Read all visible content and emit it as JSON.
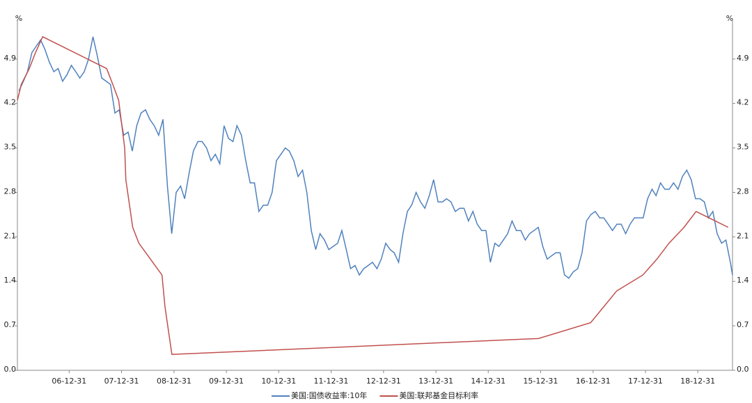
{
  "chart_data": {
    "type": "line",
    "y_label": "%",
    "y2_label": "%",
    "ylim": [
      0,
      5.5
    ],
    "yticks": [
      {
        "value": 0,
        "label": "0.0"
      },
      0.7,
      1.4,
      2.1,
      2.8,
      3.5,
      4.2,
      4.9
    ],
    "y2lim": [
      0,
      5.5
    ],
    "y2ticks": [
      {
        "value": 0,
        "label": "0.0"
      },
      0.7,
      1.4,
      2.1,
      2.8,
      3.5,
      4.2,
      4.9
    ],
    "xlim": [
      "06-01-04",
      "19-08-30"
    ],
    "xticks": [
      "06-12-31",
      "07-12-31",
      "08-12-31",
      "09-12-31",
      "10-12-31",
      "11-12-31",
      "12-12-31",
      "13-12-31",
      "14-12-31",
      "15-12-31",
      "16-12-31",
      "17-12-31",
      "18-12-31"
    ],
    "legend": "bottom",
    "series": [
      {
        "name": "美国:国债收益率:10年",
        "color": "#4f81bd",
        "x": [
          "06-01-15",
          "06-02-15",
          "06-03-15",
          "06-04-15",
          "06-05-15",
          "06-06-15",
          "06-07-15",
          "06-08-15",
          "06-09-15",
          "06-10-15",
          "06-11-15",
          "06-12-15",
          "07-01-15",
          "07-02-15",
          "07-03-15",
          "07-04-15",
          "07-05-15",
          "07-06-15",
          "07-07-15",
          "07-08-15",
          "07-09-15",
          "07-10-15",
          "07-11-15",
          "07-12-15",
          "08-01-15",
          "08-02-15",
          "08-03-15",
          "08-04-15",
          "08-05-15",
          "08-06-15",
          "08-07-15",
          "08-08-15",
          "08-09-15",
          "08-10-15",
          "08-11-15",
          "08-12-15",
          "09-01-15",
          "09-02-15",
          "09-03-15",
          "09-04-15",
          "09-05-15",
          "09-06-15",
          "09-07-15",
          "09-08-15",
          "09-09-15",
          "09-10-15",
          "09-11-15",
          "09-12-15",
          "10-01-15",
          "10-02-15",
          "10-03-15",
          "10-04-15",
          "10-05-15",
          "10-06-15",
          "10-07-15",
          "10-08-15",
          "10-09-15",
          "10-10-15",
          "10-11-15",
          "10-12-15",
          "11-01-15",
          "11-02-15",
          "11-03-15",
          "11-04-15",
          "11-05-15",
          "11-06-15",
          "11-07-15",
          "11-08-15",
          "11-09-15",
          "11-10-15",
          "11-11-15",
          "11-12-15",
          "12-01-15",
          "12-02-15",
          "12-03-15",
          "12-04-15",
          "12-05-15",
          "12-06-15",
          "12-07-15",
          "12-08-15",
          "12-09-15",
          "12-10-15",
          "12-11-15",
          "12-12-15",
          "13-01-15",
          "13-02-15",
          "13-03-15",
          "13-04-15",
          "13-05-15",
          "13-06-15",
          "13-07-15",
          "13-08-15",
          "13-09-15",
          "13-10-15",
          "13-11-15",
          "13-12-15",
          "14-01-15",
          "14-02-15",
          "14-03-15",
          "14-04-15",
          "14-05-15",
          "14-06-15",
          "14-07-15",
          "14-08-15",
          "14-09-15",
          "14-10-15",
          "14-11-15",
          "14-12-15",
          "15-01-15",
          "15-02-15",
          "15-03-15",
          "15-04-15",
          "15-05-15",
          "15-06-15",
          "15-07-15",
          "15-08-15",
          "15-09-15",
          "15-10-15",
          "15-11-15",
          "15-12-15",
          "16-01-15",
          "16-02-15",
          "16-03-15",
          "16-04-15",
          "16-05-15",
          "16-06-15",
          "16-07-15",
          "16-08-15",
          "16-09-15",
          "16-10-15",
          "16-11-15",
          "16-12-15",
          "17-01-15",
          "17-02-15",
          "17-03-15",
          "17-04-15",
          "17-05-15",
          "17-06-15",
          "17-07-15",
          "17-08-15",
          "17-09-15",
          "17-10-15",
          "17-11-15",
          "17-12-15",
          "18-01-15",
          "18-02-15",
          "18-03-15",
          "18-04-15",
          "18-05-15",
          "18-06-15",
          "18-07-15",
          "18-08-15",
          "18-09-15",
          "18-10-15",
          "18-11-15",
          "18-12-15",
          "19-01-15",
          "19-02-15",
          "19-03-15",
          "19-04-15",
          "19-05-15",
          "19-06-15",
          "19-07-15",
          "19-08-15",
          "19-08-30"
        ],
        "values": [
          4.4,
          4.55,
          4.7,
          5.0,
          5.1,
          5.2,
          5.05,
          4.85,
          4.7,
          4.75,
          4.55,
          4.65,
          4.8,
          4.7,
          4.6,
          4.7,
          4.9,
          5.25,
          4.95,
          4.6,
          4.55,
          4.5,
          4.05,
          4.1,
          3.7,
          3.75,
          3.45,
          3.85,
          4.05,
          4.1,
          3.95,
          3.85,
          3.7,
          3.95,
          2.9,
          2.15,
          2.8,
          2.9,
          2.7,
          3.1,
          3.45,
          3.6,
          3.6,
          3.5,
          3.3,
          3.4,
          3.25,
          3.85,
          3.65,
          3.6,
          3.85,
          3.7,
          3.3,
          2.95,
          2.95,
          2.5,
          2.6,
          2.6,
          2.8,
          3.3,
          3.4,
          3.5,
          3.45,
          3.3,
          3.05,
          3.15,
          2.8,
          2.2,
          1.9,
          2.15,
          2.05,
          1.9,
          1.95,
          2.0,
          2.2,
          1.9,
          1.6,
          1.65,
          1.5,
          1.6,
          1.65,
          1.7,
          1.6,
          1.75,
          2.0,
          1.9,
          1.85,
          1.7,
          2.15,
          2.5,
          2.6,
          2.8,
          2.65,
          2.55,
          2.75,
          3.0,
          2.65,
          2.65,
          2.7,
          2.65,
          2.5,
          2.55,
          2.55,
          2.35,
          2.5,
          2.3,
          2.2,
          2.2,
          1.7,
          2.0,
          1.95,
          2.05,
          2.15,
          2.35,
          2.2,
          2.2,
          2.05,
          2.15,
          2.2,
          2.25,
          1.95,
          1.75,
          1.8,
          1.85,
          1.85,
          1.5,
          1.45,
          1.55,
          1.6,
          1.85,
          2.35,
          2.45,
          2.5,
          2.4,
          2.4,
          2.3,
          2.2,
          2.3,
          2.3,
          2.15,
          2.3,
          2.4,
          2.4,
          2.4,
          2.7,
          2.85,
          2.75,
          2.95,
          2.85,
          2.85,
          2.95,
          2.85,
          3.05,
          3.15,
          3.0,
          2.7,
          2.7,
          2.65,
          2.4,
          2.5,
          2.15,
          2.0,
          2.05,
          1.7,
          1.5
        ]
      },
      {
        "name": "美国:联邦基金目标利率",
        "color": "#c0504d",
        "x": [
          "06-01-04",
          "06-01-31",
          "06-03-28",
          "06-05-10",
          "06-06-29",
          "07-09-18",
          "07-10-31",
          "07-12-11",
          "08-01-22",
          "08-01-30",
          "08-03-18",
          "08-04-30",
          "08-10-08",
          "08-10-29",
          "08-12-16",
          "15-12-16",
          "16-12-14",
          "17-03-15",
          "17-06-14",
          "17-12-13",
          "18-03-21",
          "18-06-13",
          "18-09-26",
          "18-12-19",
          "19-07-31"
        ],
        "values": [
          4.25,
          4.5,
          4.75,
          5.0,
          5.25,
          4.75,
          4.5,
          4.25,
          3.5,
          3.0,
          2.25,
          2.0,
          1.5,
          1.0,
          0.25,
          0.5,
          0.75,
          1.0,
          1.25,
          1.5,
          1.75,
          2.0,
          2.25,
          2.5,
          2.25
        ]
      }
    ]
  }
}
